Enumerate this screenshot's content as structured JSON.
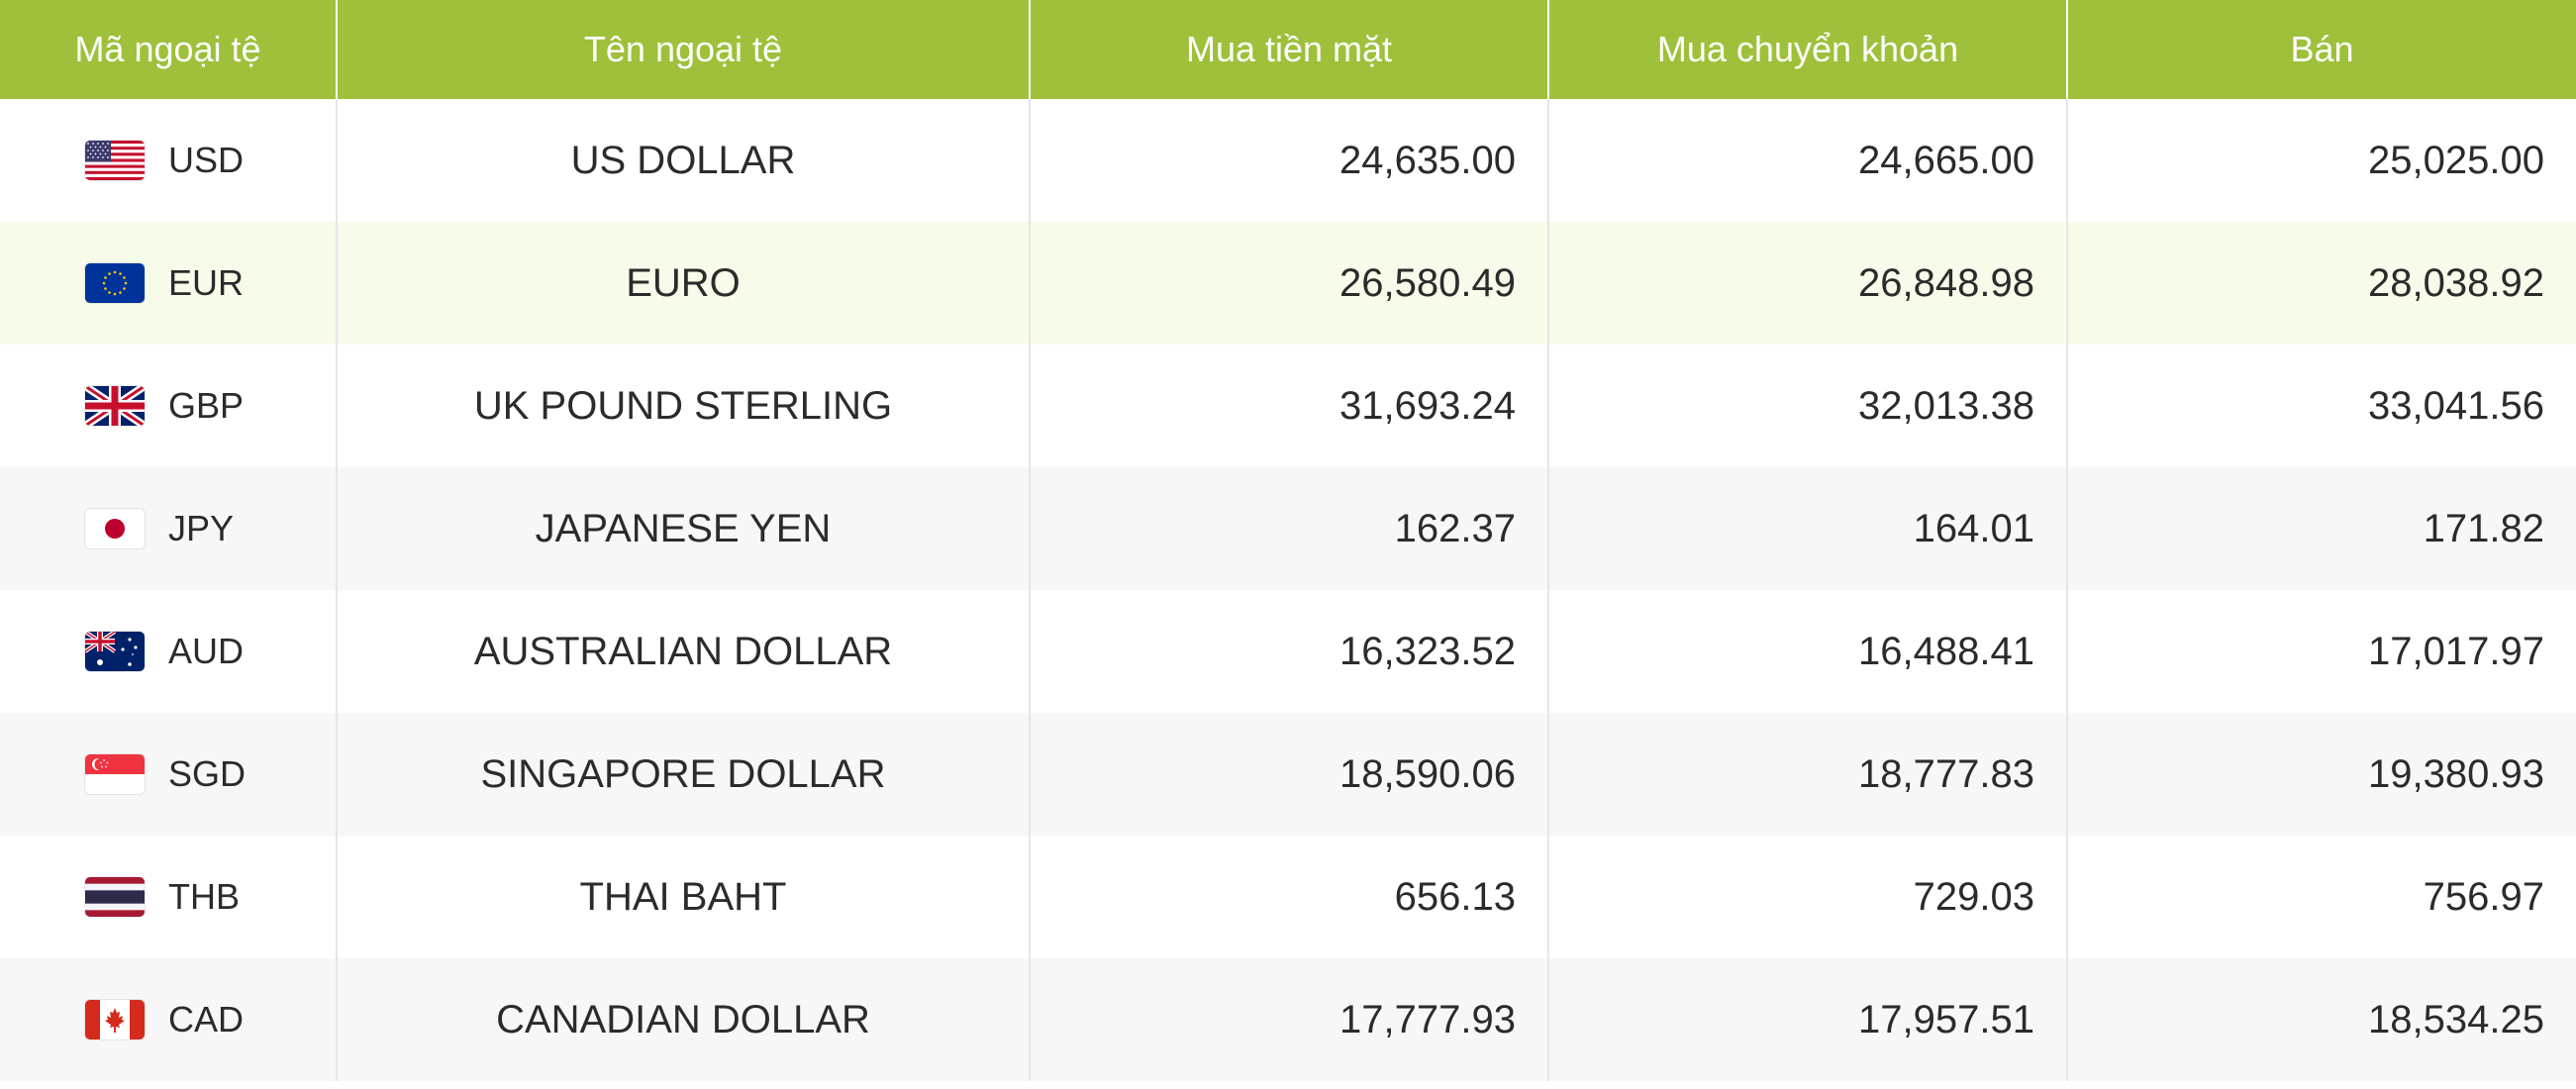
{
  "table": {
    "headers": [
      "Mã ngoại tệ",
      "Tên ngoại tệ",
      "Mua tiền mặt",
      "Mua chuyển khoản",
      "Bán"
    ],
    "rows": [
      {
        "code": "USD",
        "flag": "us-flag-icon",
        "name": "US DOLLAR",
        "buy_cash": "24,635.00",
        "buy_transfer": "24,665.00",
        "sell": "25,025.00"
      },
      {
        "code": "EUR",
        "flag": "eu-flag-icon",
        "name": "EURO",
        "buy_cash": "26,580.49",
        "buy_transfer": "26,848.98",
        "sell": "28,038.92"
      },
      {
        "code": "GBP",
        "flag": "uk-flag-icon",
        "name": "UK POUND STERLING",
        "buy_cash": "31,693.24",
        "buy_transfer": "32,013.38",
        "sell": "33,041.56"
      },
      {
        "code": "JPY",
        "flag": "japan-flag-icon",
        "name": "JAPANESE YEN",
        "buy_cash": "162.37",
        "buy_transfer": "164.01",
        "sell": "171.82"
      },
      {
        "code": "AUD",
        "flag": "australia-flag-icon",
        "name": "AUSTRALIAN DOLLAR",
        "buy_cash": "16,323.52",
        "buy_transfer": "16,488.41",
        "sell": "17,017.97"
      },
      {
        "code": "SGD",
        "flag": "singapore-flag-icon",
        "name": "SINGAPORE DOLLAR",
        "buy_cash": "18,590.06",
        "buy_transfer": "18,777.83",
        "sell": "19,380.93"
      },
      {
        "code": "THB",
        "flag": "thailand-flag-icon",
        "name": "THAI BAHT",
        "buy_cash": "656.13",
        "buy_transfer": "729.03",
        "sell": "756.97"
      },
      {
        "code": "CAD",
        "flag": "canada-flag-icon",
        "name": "CANADIAN DOLLAR",
        "buy_cash": "17,777.93",
        "buy_transfer": "17,957.51",
        "sell": "18,534.25"
      }
    ]
  },
  "colors": {
    "header_bg": "#9fc03a",
    "header_text": "#ffffff",
    "highlight_row": "#f7fbea",
    "alt_row": "#f7f7f7"
  }
}
